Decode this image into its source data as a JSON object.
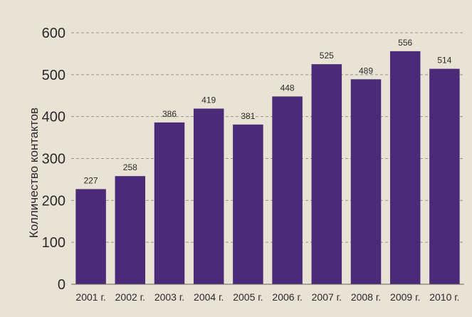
{
  "chart_data": {
    "type": "bar",
    "title": "",
    "xlabel": "",
    "ylabel": "Колличество контактов",
    "categories": [
      "2001 г.",
      "2002 г.",
      "2003 г.",
      "2004 г.",
      "2005 г.",
      "2006 г.",
      "2007 г.",
      "2008 г.",
      "2009 г.",
      "2010 г."
    ],
    "values": [
      227,
      258,
      386,
      419,
      381,
      448,
      525,
      489,
      556,
      514
    ],
    "value_labels": [
      "227",
      "258",
      "386",
      "419",
      "381",
      "448",
      "525",
      "489",
      "556",
      "514"
    ],
    "ylim": [
      0,
      600
    ],
    "yticks": [
      0,
      100,
      200,
      300,
      400,
      500,
      600
    ],
    "ytick_labels": [
      "0",
      "100",
      "200",
      "300",
      "400",
      "500",
      "600"
    ],
    "grid": true,
    "grid_style": "dashed",
    "legend": "none",
    "colors": {
      "bar": "#4b2a78",
      "background": "#e9e3d6",
      "grid": "#9a9488",
      "text": "#2a2a2a"
    }
  }
}
